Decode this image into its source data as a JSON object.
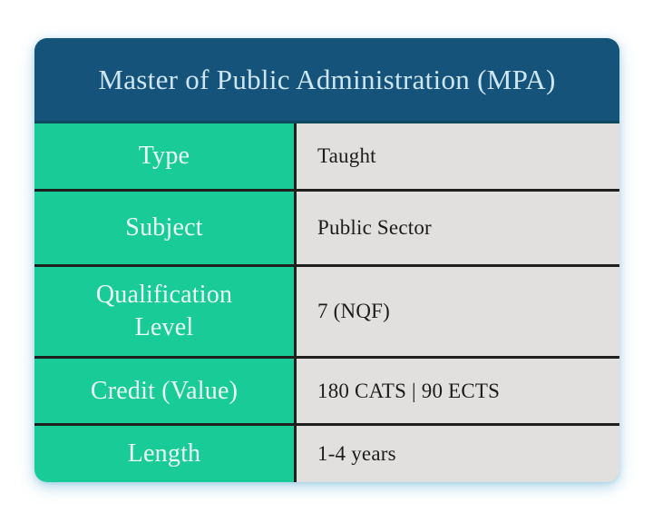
{
  "card": {
    "title": "Master of Public Administration (MPA)",
    "rows": [
      {
        "label": "Type",
        "value": "Taught"
      },
      {
        "label": "Subject",
        "value": "Public Sector"
      },
      {
        "label": "Qualification\nLevel",
        "value": "7 (NQF)"
      },
      {
        "label": "Credit (Value)",
        "value": "180 CATS | 90 ECTS"
      },
      {
        "label": "Length",
        "value": "1-4 years"
      }
    ],
    "colors": {
      "header_bg": "#15537B",
      "header_text": "#CDE6F2",
      "label_bg": "#18CB97",
      "label_text": "#EDFDF5",
      "value_bg": "#E1E0DE",
      "value_text": "#1D1C1A",
      "divider": "#1F1F1D"
    }
  }
}
